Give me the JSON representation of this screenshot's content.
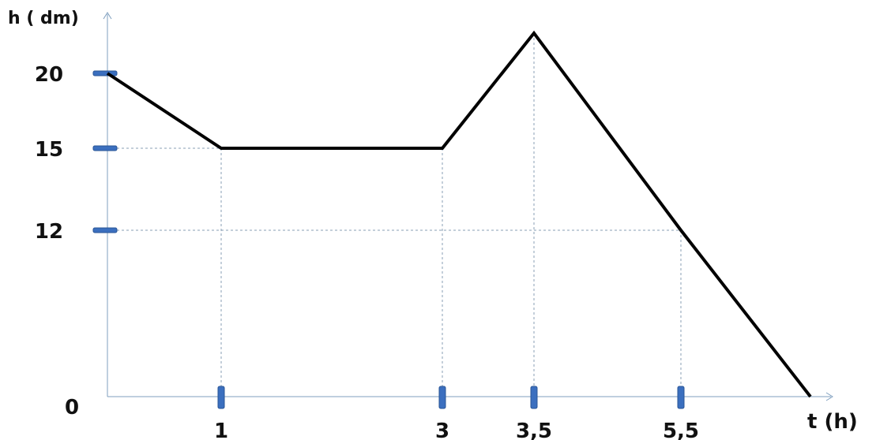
{
  "chart_data": {
    "type": "line",
    "title": "",
    "xlabel": "t (h)",
    "ylabel": "h ( dm)",
    "xlim": [
      0,
      6.3
    ],
    "ylim": [
      0,
      25
    ],
    "grid": false,
    "x_ticks": [
      {
        "value": 1,
        "label": "1"
      },
      {
        "value": 3,
        "label": "3"
      },
      {
        "value": 3.5,
        "label": "3,5"
      },
      {
        "value": 5.5,
        "label": "5,5"
      }
    ],
    "y_ticks": [
      {
        "value": 20,
        "label": "20"
      },
      {
        "value": 15,
        "label": "15"
      },
      {
        "value": 12,
        "label": "12"
      }
    ],
    "origin_label": "0",
    "series": [
      {
        "x": [
          0,
          1,
          3,
          3.5,
          5.5,
          6.3
        ],
        "y": [
          20,
          15,
          15,
          23,
          12,
          0
        ]
      }
    ],
    "guide_lines": [
      {
        "x": 1,
        "y": 15
      },
      {
        "x": 3,
        "y": 15
      },
      {
        "x": 3.5,
        "y": 23
      },
      {
        "x": 5.5,
        "y": 12
      }
    ],
    "colors": {
      "line": "#000000",
      "axis": "#7f9fbf",
      "guide": "#8a9fb5",
      "tick_marker": "#3b6fbf"
    }
  }
}
